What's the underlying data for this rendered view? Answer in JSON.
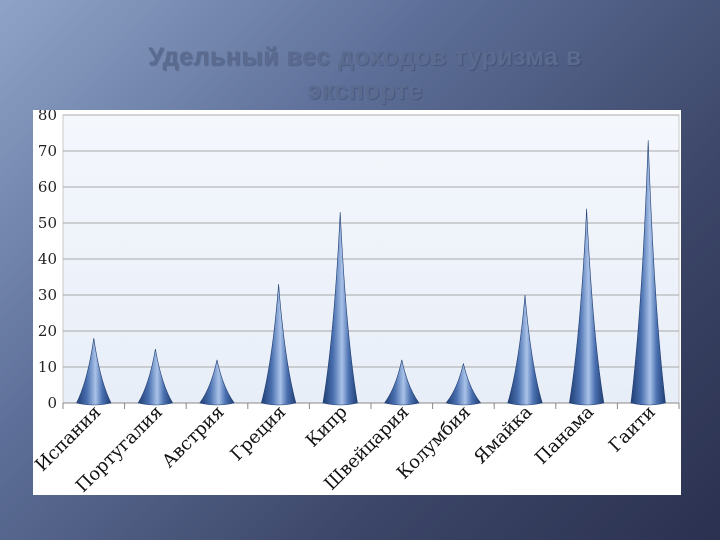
{
  "slide": {
    "title_line1": "Удельный вес доходов туризма  в",
    "title_line2": "экспорте"
  },
  "chart_data": {
    "type": "bar",
    "shape": "cone",
    "categories": [
      "Испания",
      "Португалия",
      "Австрия",
      "Греция",
      "Кипр",
      "Швейцария",
      "Колумбия",
      "Ямайка",
      "Панама",
      "Гаити"
    ],
    "values": [
      18,
      15,
      12,
      33,
      53,
      12,
      11,
      30,
      54,
      73
    ],
    "ylim": [
      0,
      80
    ],
    "yticks": [
      0,
      10,
      20,
      30,
      40,
      50,
      60,
      70,
      80
    ],
    "grid": true,
    "colors": {
      "bar": "#4a70b0",
      "bar_light": "#a9c2e8",
      "bar_dark": "#1f3d72",
      "gridline": "#a8a8a8",
      "plot_bg": "#e8eef8"
    }
  }
}
